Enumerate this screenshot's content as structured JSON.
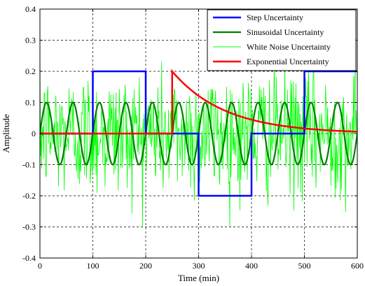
{
  "chart_data": {
    "type": "line",
    "xlabel": "Time (min)",
    "ylabel": "Amplitude",
    "xlim": [
      0,
      600
    ],
    "ylim": [
      -0.4,
      0.4
    ],
    "x_ticks": [
      0,
      100,
      200,
      300,
      400,
      500,
      600
    ],
    "y_ticks": [
      -0.4,
      -0.3,
      -0.2,
      -0.1,
      0,
      0.1,
      0.2,
      0.3,
      0.4
    ],
    "x_tick_labels": [
      "0",
      "100",
      "200",
      "300",
      "400",
      "500",
      "600"
    ],
    "y_tick_labels": [
      "-0.4",
      "-0.3",
      "-0.2",
      "-0.1",
      "0",
      "0.1",
      "0.2",
      "0.3",
      "0.4"
    ],
    "grid": true,
    "legend_position": "top-right",
    "series": [
      {
        "name": "Step Uncertainty",
        "color": "#0000ff",
        "x": [
          0,
          100,
          100,
          200,
          200,
          300,
          300,
          400,
          400,
          500,
          500,
          600
        ],
        "y": [
          0,
          0,
          0.2,
          0.2,
          0,
          0,
          -0.2,
          -0.2,
          0,
          0,
          0.2,
          0.2
        ]
      },
      {
        "name": "Sinusoidal Uncertainty",
        "color": "#007f00",
        "amplitude": 0.1,
        "period": 50,
        "x": [
          0,
          12.5,
          25,
          37.5,
          50,
          62.5,
          75,
          87.5,
          100,
          112.5,
          125,
          137.5,
          150,
          162.5,
          175,
          187.5,
          200,
          212.5,
          225,
          237.5,
          250,
          262.5,
          275,
          287.5,
          300,
          312.5,
          325,
          337.5,
          350,
          362.5,
          375,
          387.5,
          400,
          412.5,
          425,
          437.5,
          450,
          462.5,
          475,
          487.5,
          500,
          512.5,
          525,
          537.5,
          550,
          562.5,
          575,
          587.5,
          600
        ],
        "y": [
          0,
          0.1,
          0,
          -0.1,
          0,
          0.1,
          0,
          -0.1,
          0,
          0.1,
          0,
          -0.1,
          0,
          0.1,
          0,
          -0.1,
          0,
          0.1,
          0,
          -0.1,
          0,
          0.1,
          0,
          -0.1,
          0,
          0.1,
          0,
          -0.1,
          0,
          0.1,
          0,
          -0.1,
          0,
          0.1,
          0,
          -0.1,
          0,
          0.1,
          0,
          -0.1,
          0,
          0.1,
          0,
          -0.1,
          0,
          0.1,
          0,
          -0.1,
          0
        ]
      },
      {
        "name": "White Noise Uncertainty",
        "color": "#00ff00",
        "sample_interval": 1,
        "std": 0.1,
        "x_range": [
          0,
          600
        ]
      },
      {
        "name": "Exponential Uncertainty",
        "color": "#ff0000",
        "x": [
          0,
          250,
          250,
          275,
          300,
          325,
          350,
          375,
          400,
          425,
          450,
          475,
          500,
          525,
          550,
          575,
          600
        ],
        "y": [
          0,
          0,
          0.2,
          0.156,
          0.121,
          0.094,
          0.074,
          0.057,
          0.045,
          0.035,
          0.027,
          0.021,
          0.016,
          0.013,
          0.01,
          0.008,
          0.006
        ]
      }
    ]
  }
}
